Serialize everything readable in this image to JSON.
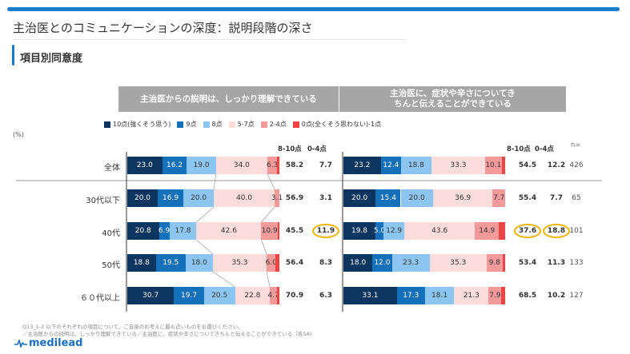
{
  "title": "主治医とのコミュニケーションの深度：説明段階の深さ",
  "subtitle": "項目別同意度",
  "unit": "(%)",
  "footnote": [
    "Q13_1-2 以下のそれぞれの項目について、ご自身のお考えに最も近いものをお選びください。",
    "／主治医からの説明は、しっかり理解できている／主治医に、症状や辛さについてきちんと伝えることができている（各SA)"
  ],
  "logo": "medilead",
  "colors": {
    "accent": "#1a7bc9",
    "highlight": "#f0b400"
  },
  "chart_data": {
    "type": "bar",
    "stacked": true,
    "orientation": "horizontal",
    "legend": [
      "10点(強くそう思う)",
      "9点",
      "8点",
      "5-7点",
      "2-4点",
      "0点(全くそう思わない)-1点"
    ],
    "legend_placement": "top",
    "colors": [
      "#0c3560",
      "#1470b8",
      "#8cc6f0",
      "#fddcdc",
      "#f59a9a",
      "#ef4444"
    ],
    "categories": [
      "全体",
      "30代以下",
      "40代",
      "50代",
      "６０代以上"
    ],
    "summary_headers": [
      "8-10点",
      "0-4点",
      "n="
    ],
    "n": [
      426,
      65,
      101,
      133,
      127
    ],
    "panels": [
      {
        "title": "主治医からの説明は、しっかり理解できている",
        "series": [
          [
            23.0,
            16.2,
            19.0,
            34.0,
            6.3,
            1.4
          ],
          [
            20.0,
            16.9,
            20.0,
            40.0,
            3.1,
            0.0
          ],
          [
            20.8,
            6.9,
            17.8,
            42.6,
            10.9,
            1.0
          ],
          [
            18.8,
            19.5,
            18.0,
            35.3,
            6.0,
            2.3
          ],
          [
            30.7,
            19.7,
            20.5,
            22.8,
            4.7,
            1.6
          ]
        ],
        "top": [
          "58.2",
          "56.9",
          "45.5",
          "56.4",
          "70.9"
        ],
        "bottom": [
          "7.7",
          "3.1",
          "11.9",
          "8.3",
          "6.3"
        ],
        "highlighted": [
          {
            "row": 2,
            "col": "bottom"
          }
        ]
      },
      {
        "title": "主治医に、症状や辛さについてきちんと伝えることができている",
        "series": [
          [
            23.2,
            12.4,
            18.8,
            33.3,
            10.1,
            2.1
          ],
          [
            20.0,
            15.4,
            20.0,
            36.9,
            7.7,
            0.0
          ],
          [
            19.8,
            5.0,
            12.9,
            43.6,
            14.9,
            3.9
          ],
          [
            18.0,
            12.0,
            23.3,
            35.3,
            9.8,
            1.5
          ],
          [
            33.1,
            17.3,
            18.1,
            21.3,
            7.9,
            2.3
          ]
        ],
        "top": [
          "54.5",
          "55.4",
          "37.6",
          "53.4",
          "68.5"
        ],
        "bottom": [
          "12.2",
          "7.7",
          "18.8",
          "11.3",
          "10.2"
        ],
        "highlighted": [
          {
            "row": 2,
            "col": "top"
          },
          {
            "row": 2,
            "col": "bottom"
          }
        ]
      }
    ],
    "xlim": [
      0,
      100
    ]
  }
}
